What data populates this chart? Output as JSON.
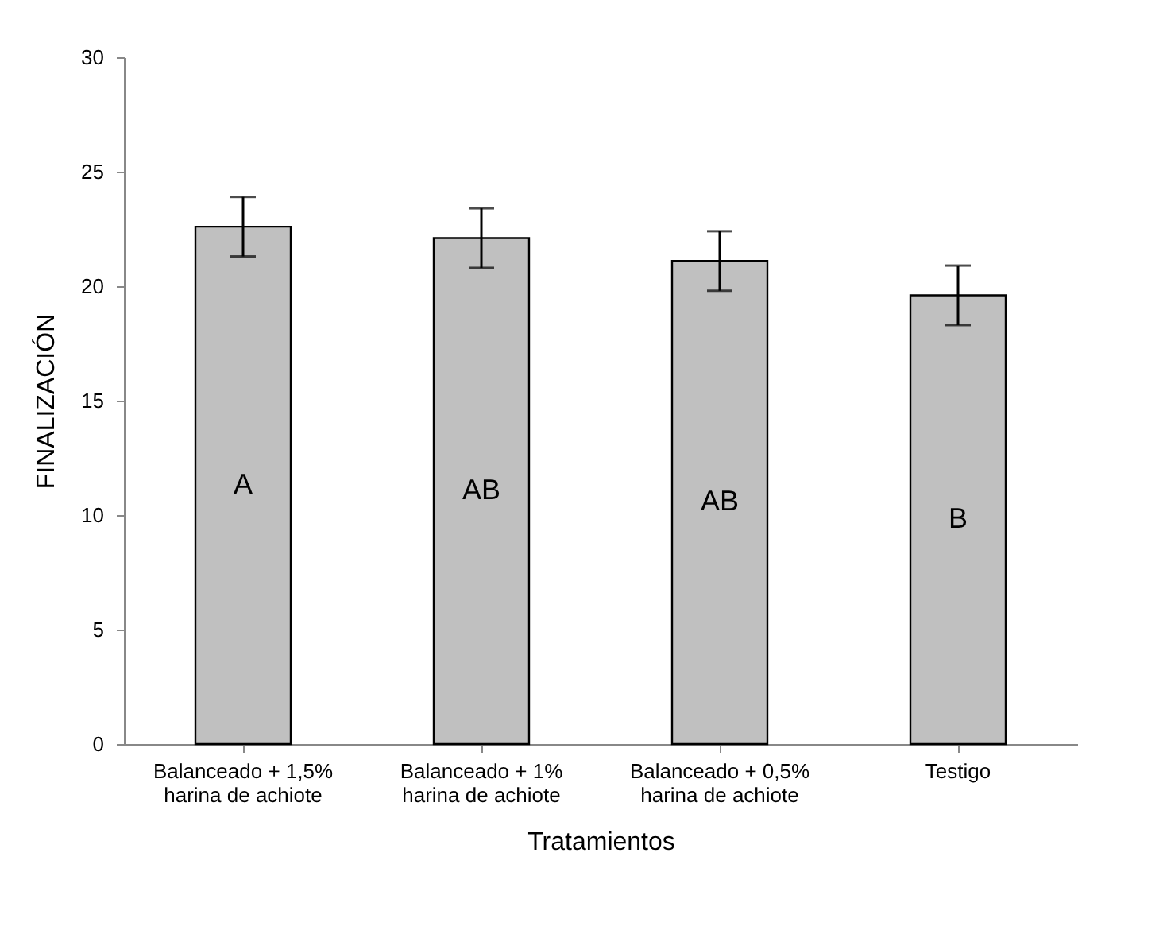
{
  "chart_data": {
    "type": "bar",
    "xlabel": "Tratamientos",
    "ylabel": "FINALIZACIÓN",
    "categories": [
      "Balanceado + 1,5%\nharina de achiote",
      "Balanceado + 1%\nharina de achiote",
      "Balanceado + 0,5%\nharina de achiote",
      "Testigo"
    ],
    "values": [
      22.6,
      22.1,
      21.1,
      19.6
    ],
    "errors": [
      1.3,
      1.3,
      1.3,
      1.3
    ],
    "color": "#c0c0c0",
    "ylim": [
      0,
      30
    ],
    "yticks": [
      0,
      5,
      10,
      15,
      20,
      25,
      30
    ],
    "grid": false,
    "annotations": [
      "A",
      "AB",
      "AB",
      "B"
    ]
  }
}
